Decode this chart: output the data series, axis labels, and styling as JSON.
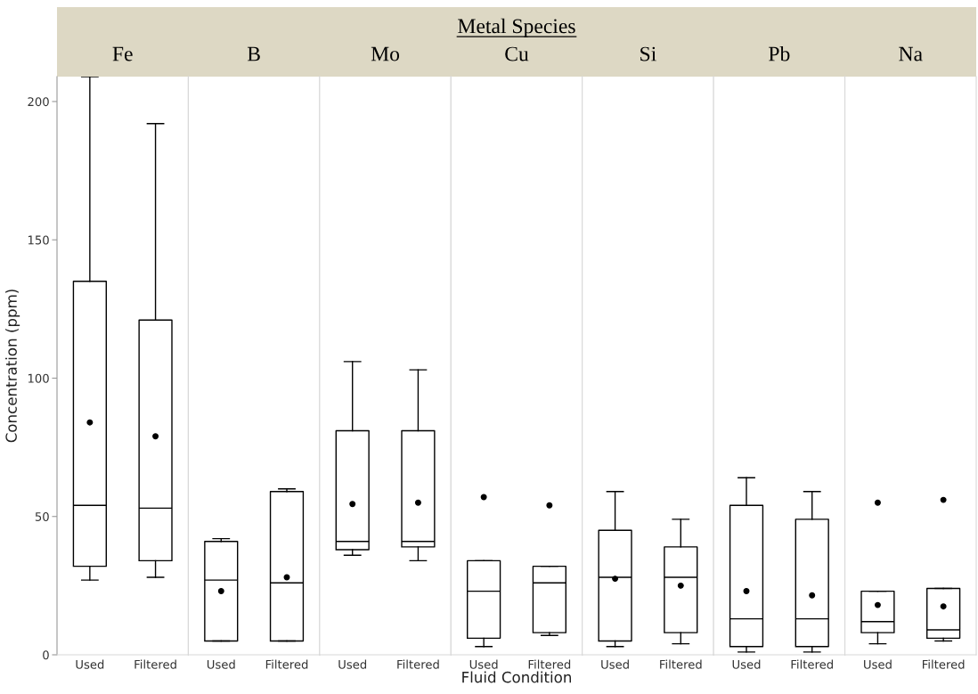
{
  "chart_data": [
    {
      "type": "box",
      "title": "Fe",
      "annotations": [
        "Metal Species"
      ],
      "ylabel": "Concentration (ppm)",
      "categories": [
        "Used",
        "Filtered"
      ],
      "ylim": [
        0,
        209
      ],
      "yticks": [
        0,
        50,
        100,
        150,
        200
      ],
      "color": "#000000",
      "boxes": [
        {
          "low": 27,
          "q1": 32,
          "median": 54,
          "q3": 135,
          "high": 209,
          "mean": 84
        },
        {
          "low": 28,
          "q1": 34,
          "median": 53,
          "q3": 121,
          "high": 192,
          "mean": 79
        }
      ]
    },
    {
      "type": "box",
      "title": "B",
      "categories": [
        "Used",
        "Filtered"
      ],
      "ylim": [
        0,
        209
      ],
      "tick_labels": "x",
      "color": "#000000",
      "boxes": [
        {
          "low": 5,
          "q1": 5,
          "median": 27,
          "q3": 41,
          "high": 42,
          "mean": 23
        },
        {
          "low": 5,
          "q1": 5,
          "median": 26,
          "q3": 59,
          "high": 60,
          "mean": 28
        }
      ]
    },
    {
      "type": "box",
      "title": "Mo",
      "categories": [
        "Used",
        "Filtered"
      ],
      "ylim": [
        0,
        209
      ],
      "tick_labels": "x",
      "color": "#000000",
      "boxes": [
        {
          "low": 36,
          "q1": 38,
          "median": 41,
          "q3": 81,
          "high": 106,
          "mean": 54.5
        },
        {
          "low": 34,
          "q1": 39,
          "median": 41,
          "q3": 81,
          "high": 103,
          "mean": 55
        }
      ]
    },
    {
      "type": "box",
      "title": "Cu",
      "xlabel": "Fluid Condition",
      "categories": [
        "Used",
        "Filtered"
      ],
      "ylim": [
        0,
        209
      ],
      "tick_labels": "x",
      "color": "#000000",
      "boxes": [
        {
          "low": 3,
          "q1": 6,
          "median": 23,
          "q3": 34,
          "high": 34,
          "outliers": [
            57
          ]
        },
        {
          "low": 7,
          "q1": 8,
          "median": 26,
          "q3": 32,
          "high": 32,
          "outliers": [
            54
          ]
        }
      ]
    },
    {
      "type": "box",
      "title": "Si",
      "categories": [
        "Used",
        "Filtered"
      ],
      "ylim": [
        0,
        209
      ],
      "tick_labels": "x",
      "color": "#000000",
      "boxes": [
        {
          "low": 3,
          "q1": 5,
          "median": 28,
          "q3": 45,
          "high": 59,
          "mean": 27.5
        },
        {
          "low": 4,
          "q1": 8,
          "median": 28,
          "q3": 39,
          "high": 49,
          "mean": 25
        }
      ]
    },
    {
      "type": "box",
      "title": "Pb",
      "categories": [
        "Used",
        "Filtered"
      ],
      "ylim": [
        0,
        209
      ],
      "tick_labels": "x",
      "color": "#000000",
      "boxes": [
        {
          "low": 1,
          "q1": 3,
          "median": 13,
          "q3": 54,
          "high": 64,
          "mean": 23
        },
        {
          "low": 1,
          "q1": 3,
          "median": 13,
          "q3": 49,
          "high": 59,
          "mean": 21.5
        }
      ]
    },
    {
      "type": "box",
      "title": "Na",
      "categories": [
        "Used",
        "Filtered"
      ],
      "ylim": [
        0,
        209
      ],
      "tick_labels": "x",
      "color": "#000000",
      "boxes": [
        {
          "low": 4,
          "q1": 8,
          "median": 12,
          "q3": 23,
          "high": 23,
          "mean": 18,
          "outliers": [
            55
          ]
        },
        {
          "low": 5,
          "q1": 6,
          "median": 9,
          "q3": 24,
          "high": 24,
          "mean": 17.5,
          "outliers": [
            56
          ]
        }
      ]
    }
  ]
}
